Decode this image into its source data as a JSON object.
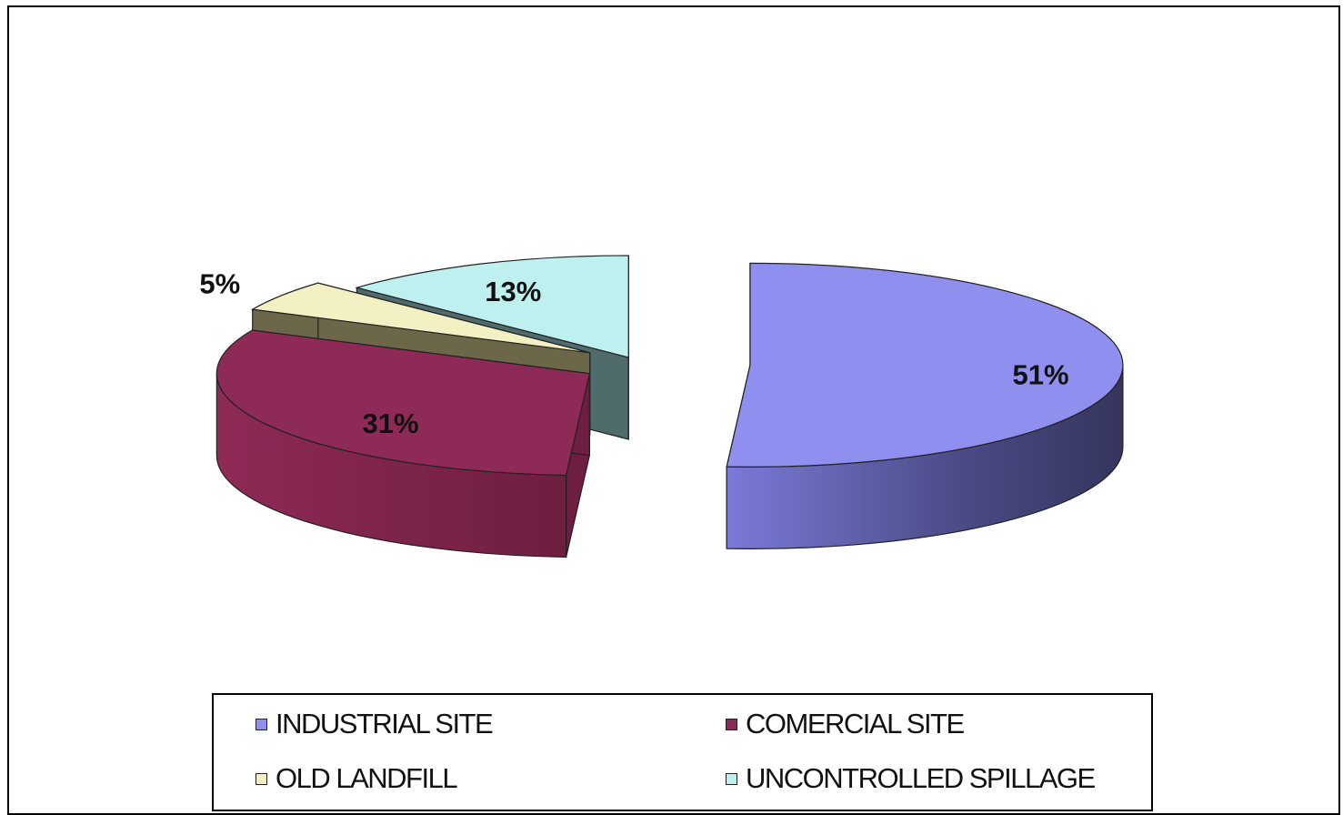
{
  "chart_data": {
    "type": "pie",
    "categories": [
      "INDUSTRIAL SITE",
      "COMERCIAL SITE",
      "OLD LANDFILL",
      "UNCONTROLLED SPILLAGE"
    ],
    "values": [
      51,
      31,
      5,
      13
    ],
    "data_labels": [
      "51%",
      "31%",
      "5%",
      "13%"
    ],
    "colors": [
      "#8f8ff0",
      "#8e2a57",
      "#f3f0c4",
      "#bff0f0"
    ],
    "side_colors": [
      "#4a4a85",
      "#6e1e40",
      "#6b6748",
      "#4f6b6b"
    ],
    "style": "3d-exploded",
    "legend_position": "bottom"
  },
  "legend": {
    "items": [
      {
        "label": "INDUSTRIAL SITE",
        "color": "#8f8ff0"
      },
      {
        "label": "COMERCIAL SITE",
        "color": "#8e2a57"
      },
      {
        "label": "OLD LANDFILL",
        "color": "#f3f0c4"
      },
      {
        "label": "UNCONTROLLED SPILLAGE",
        "color": "#bff0f0"
      }
    ]
  }
}
